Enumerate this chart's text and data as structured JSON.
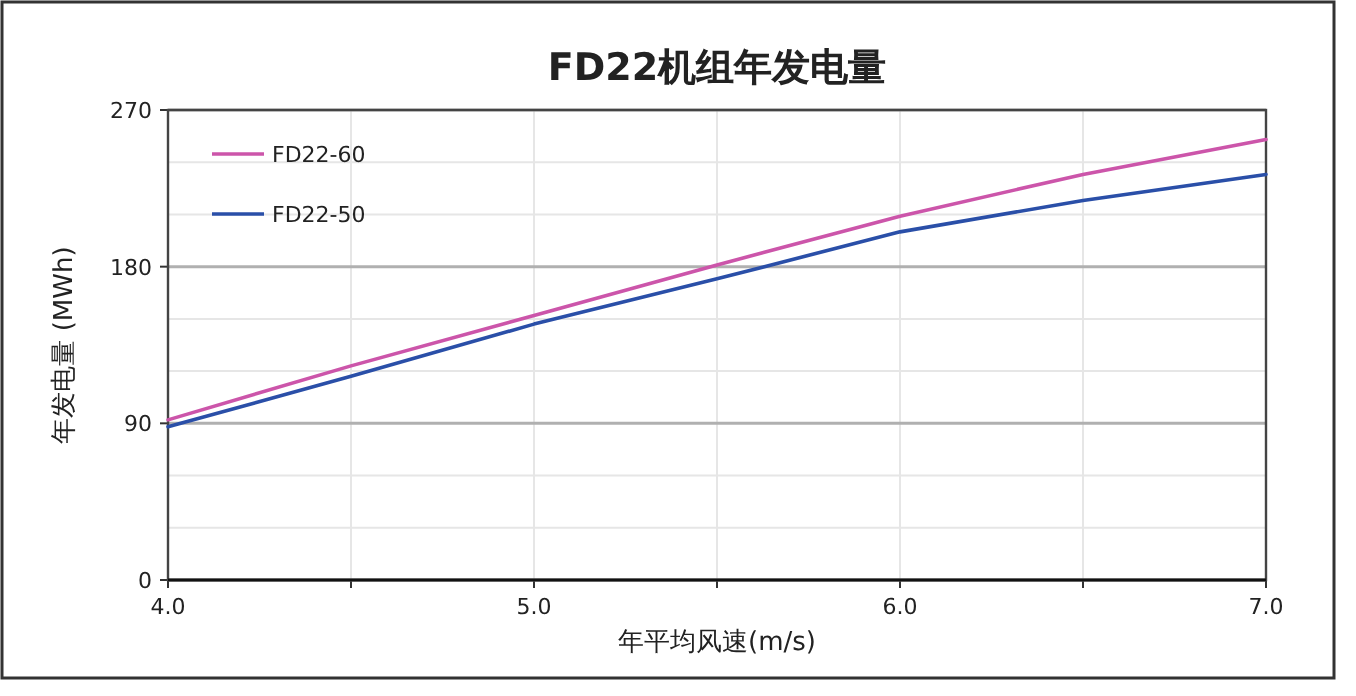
{
  "chart_data": {
    "type": "line",
    "title": "FD22机组年发电量",
    "xlabel": "年平均风速(m/s)",
    "ylabel": "年发电量 (MWh)",
    "x": [
      4.0,
      4.5,
      5.0,
      5.5,
      6.0,
      6.5,
      7.0
    ],
    "series": [
      {
        "name": "FD22-60",
        "color": "#cc55aa",
        "values": [
          92,
          123,
          152,
          181,
          209,
          233,
          253
        ]
      },
      {
        "name": "FD22-50",
        "color": "#2a4fa8",
        "values": [
          88,
          117,
          147,
          173,
          200,
          218,
          233
        ]
      }
    ],
    "xlim": [
      4.0,
      7.0
    ],
    "ylim": [
      0,
      270
    ],
    "xticks": [
      {
        "value": 4,
        "label": "4.0"
      },
      {
        "value": 4.5,
        "label": null
      },
      {
        "value": 5,
        "label": "5.0"
      },
      {
        "value": 5.5,
        "label": null
      },
      {
        "value": 6,
        "label": "6.0"
      },
      {
        "value": 6.5,
        "label": null
      },
      {
        "value": 7,
        "label": "7.0"
      }
    ],
    "yticks": [
      0,
      {
        "value": 30,
        "label": null
      },
      {
        "value": 60,
        "label": null
      },
      90,
      {
        "value": 120,
        "label": null
      },
      {
        "value": 150,
        "label": null
      },
      180,
      {
        "value": 210,
        "label": null
      },
      {
        "value": 240,
        "label": null
      },
      270
    ],
    "grid": true,
    "legend": "top left",
    "marker": "none",
    "line_style": "solid"
  }
}
